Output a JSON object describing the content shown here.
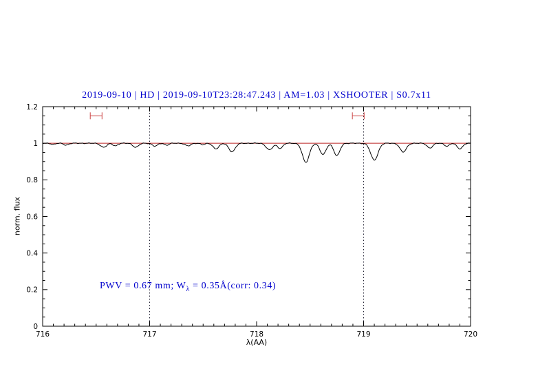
{
  "header": {
    "title": "2019-09-10 | HD | 2019-09-10T23:28:47.243 | AM=1.03 | XSHOOTER | S0.7x11"
  },
  "annotation": {
    "pre": "PWV = 0.67 mm; W",
    "sub": "λ",
    "post": " = 0.35Å(corr: 0.34)"
  },
  "colors": {
    "title": "#0000cd",
    "annotation": "#0000cd",
    "spectrum": "#000000",
    "continuum": "#bb2222",
    "marker": "#cc4444",
    "vline": "#222233",
    "frame": "#000000"
  },
  "chart_data": {
    "type": "line",
    "title": "2019-09-10 | HD | 2019-09-10T23:28:47.243 | AM=1.03 | XSHOOTER | S0.7x11",
    "xlabel": "λ(AA)",
    "ylabel": "norm. flux",
    "xlim": [
      716,
      720
    ],
    "ylim": [
      0,
      1.2
    ],
    "grid": false,
    "legend": false,
    "pwv_mm": 0.67,
    "w_lambda_A": 0.35,
    "corr": 0.34,
    "airmass": 1.03,
    "xticks": {
      "values": [
        716,
        717,
        718,
        719,
        720
      ],
      "labels": [
        "716",
        "717",
        "718",
        "719",
        "720"
      ],
      "minor_step": 0.1
    },
    "yticks": {
      "values": [
        0,
        0.2,
        0.4,
        0.6,
        0.8,
        1,
        1.2
      ],
      "labels": [
        "0",
        "0.2",
        "0.4",
        "0.6",
        "0.8",
        "1",
        "1.2"
      ],
      "minor_step": 0.05
    },
    "vlines": [
      717,
      719
    ],
    "continuum": 1.0,
    "markers": [
      {
        "x": 716.5,
        "y": 1.15,
        "half_width": 0.055
      },
      {
        "x": 718.95,
        "y": 1.15,
        "half_width": 0.055
      }
    ],
    "noise_amplitude": 0.0025,
    "absorption_lines": [
      {
        "center": 716.1,
        "depth": 0.006,
        "sigma": 0.02
      },
      {
        "center": 716.22,
        "depth": 0.01,
        "sigma": 0.022
      },
      {
        "center": 716.57,
        "depth": 0.022,
        "sigma": 0.028
      },
      {
        "center": 716.68,
        "depth": 0.014,
        "sigma": 0.022
      },
      {
        "center": 716.87,
        "depth": 0.022,
        "sigma": 0.026
      },
      {
        "center": 717.05,
        "depth": 0.016,
        "sigma": 0.024
      },
      {
        "center": 717.16,
        "depth": 0.01,
        "sigma": 0.02
      },
      {
        "center": 717.36,
        "depth": 0.014,
        "sigma": 0.026
      },
      {
        "center": 717.5,
        "depth": 0.008,
        "sigma": 0.02
      },
      {
        "center": 717.62,
        "depth": 0.03,
        "sigma": 0.028
      },
      {
        "center": 717.77,
        "depth": 0.046,
        "sigma": 0.03
      },
      {
        "center": 718.12,
        "depth": 0.036,
        "sigma": 0.03
      },
      {
        "center": 718.22,
        "depth": 0.028,
        "sigma": 0.024
      },
      {
        "center": 718.46,
        "depth": 0.105,
        "sigma": 0.032
      },
      {
        "center": 718.62,
        "depth": 0.062,
        "sigma": 0.028
      },
      {
        "center": 718.75,
        "depth": 0.068,
        "sigma": 0.028
      },
      {
        "center": 719.1,
        "depth": 0.092,
        "sigma": 0.034
      },
      {
        "center": 719.37,
        "depth": 0.048,
        "sigma": 0.03
      },
      {
        "center": 719.62,
        "depth": 0.026,
        "sigma": 0.026
      },
      {
        "center": 719.78,
        "depth": 0.016,
        "sigma": 0.022
      },
      {
        "center": 719.9,
        "depth": 0.03,
        "sigma": 0.026
      }
    ]
  }
}
